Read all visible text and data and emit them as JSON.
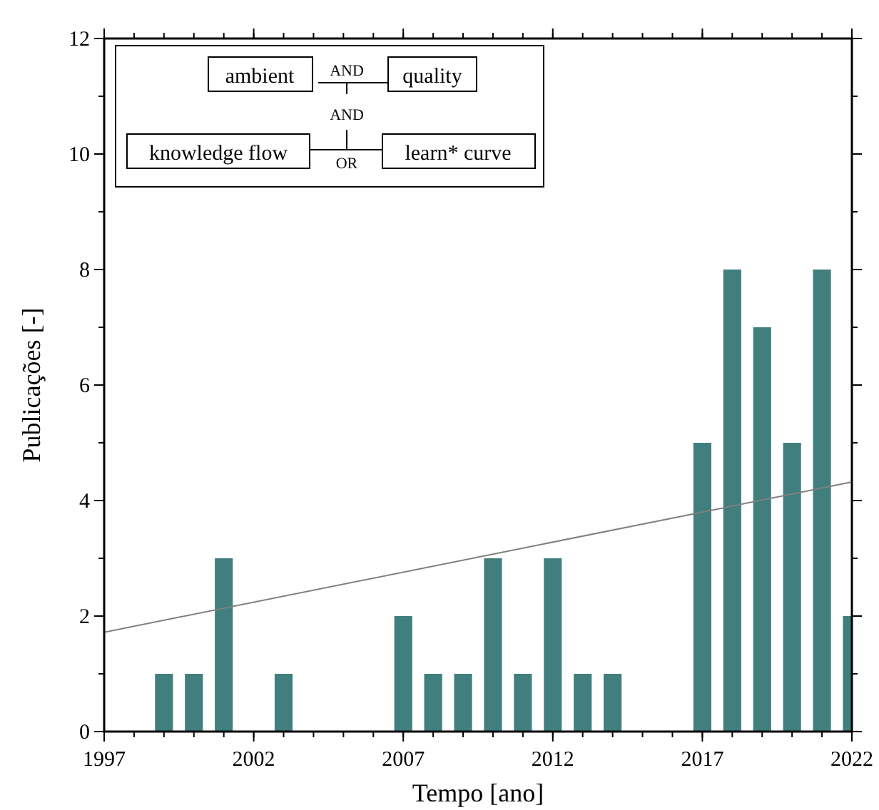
{
  "chart_data": {
    "type": "bar",
    "xlabel": "Tempo [ano]",
    "ylabel": "Publicações [-]",
    "xlim": [
      1997,
      2022
    ],
    "ylim": [
      0,
      12
    ],
    "xticks": [
      1997,
      2002,
      2007,
      2012,
      2017,
      2022
    ],
    "yticks": [
      0,
      2,
      4,
      6,
      8,
      10,
      12
    ],
    "x": [
      1999,
      2000,
      2001,
      2003,
      2007,
      2008,
      2009,
      2010,
      2011,
      2012,
      2013,
      2014,
      2017,
      2018,
      2019,
      2020,
      2021,
      2022
    ],
    "series": [
      {
        "color": "#417e7e",
        "values": [
          1,
          1,
          3,
          1,
          2,
          1,
          1,
          3,
          1,
          3,
          1,
          1,
          5,
          8,
          7,
          5,
          8,
          2
        ]
      },
      {
        "type": "line",
        "color": "#808080",
        "x": [
          1997,
          2022
        ],
        "values": [
          1.72,
          4.32
        ]
      }
    ],
    "annotations": [
      "ambient",
      "AND",
      "quality",
      "AND",
      "knowledge flow",
      "OR",
      "learn* curve"
    ],
    "grid": false
  }
}
